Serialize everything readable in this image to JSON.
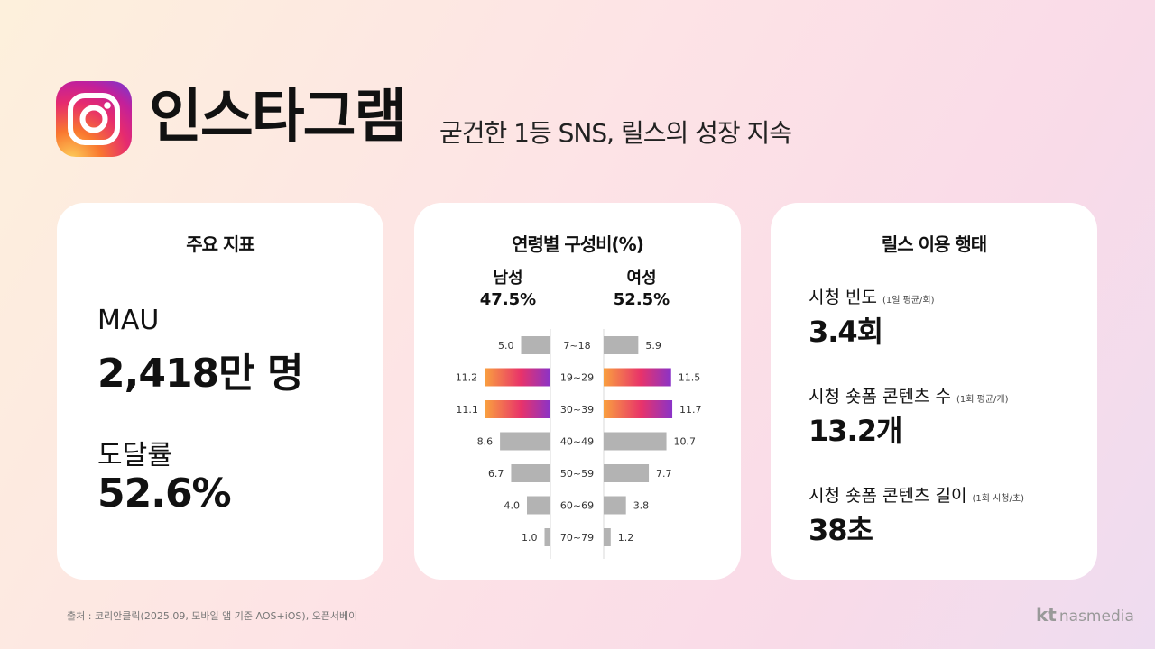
{
  "header": {
    "title": "인스타그램",
    "subtitle": "굳건한 1등 SNS, 릴스의 성장 지속"
  },
  "card_metrics": {
    "title": "주요 지표",
    "mau_label": "MAU",
    "mau_value": "2,418만 명",
    "reach_label": "도달률",
    "reach_value": "52.6%"
  },
  "card_age": {
    "title": "연령별 구성비(%)",
    "male_label": "남성",
    "male_share": "47.5%",
    "female_label": "여성",
    "female_share": "52.5%"
  },
  "card_reels": {
    "title": "릴스 이용 행태",
    "freq_label": "시청 빈도",
    "freq_note": "(1일 평균/회)",
    "freq_value": "3.4회",
    "count_label": "시청 숏폼 콘텐츠 수",
    "count_note": "(1회 평균/개)",
    "count_value": "13.2개",
    "length_label": "시청 숏폼 콘텐츠 길이",
    "length_note": "(1회 시청/초)",
    "length_value": "38초"
  },
  "chart_data": {
    "type": "bar",
    "orientation": "horizontal-butterfly",
    "title": "연령별 구성비(%)",
    "categories": [
      "7~18",
      "19~29",
      "30~39",
      "40~49",
      "50~59",
      "60~69",
      "70~79"
    ],
    "series": [
      {
        "name": "남성",
        "values": [
          5.0,
          11.2,
          11.1,
          8.6,
          6.7,
          4.0,
          1.0
        ]
      },
      {
        "name": "여성",
        "values": [
          5.9,
          11.5,
          11.7,
          10.7,
          7.7,
          3.8,
          1.2
        ]
      }
    ],
    "value_labels_male": [
      "5.0",
      "11.2",
      "11.1",
      "8.6",
      "6.7",
      "4.0",
      "1.0"
    ],
    "value_labels_female": [
      "5.9",
      "11.5",
      "11.7",
      "10.7",
      "7.7",
      "3.8",
      "1.2"
    ],
    "highlight_categories": [
      "19~29",
      "30~39"
    ],
    "colors": {
      "bar": "#b3b3b3",
      "gradient_start": "#f9a03f",
      "gradient_mid": "#e8336a",
      "gradient_end": "#8a33c8"
    }
  },
  "footer": {
    "source": "출처 : 코리안클릭(2025.09, 모바일 앱 기준 AOS+iOS), 오픈서베이",
    "brand_kt": "kt",
    "brand_name": "nasmedia"
  },
  "icons": {
    "logo": "instagram-icon"
  }
}
